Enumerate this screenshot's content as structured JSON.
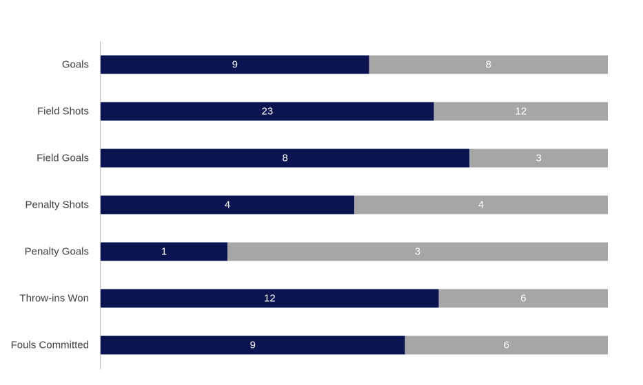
{
  "chart_data": {
    "type": "bar",
    "orientation": "horizontal",
    "stacking": "percent",
    "categories": [
      "Goals",
      "Field Shots",
      "Field Goals",
      "Penalty Shots",
      "Penalty Goals",
      "Throw-ins Won",
      "Fouls Committed"
    ],
    "series": [
      {
        "values": [
          9,
          23,
          8,
          4,
          1,
          12,
          9
        ],
        "color": "#0b1450"
      },
      {
        "values": [
          8,
          12,
          3,
          4,
          3,
          6,
          6
        ],
        "color": "#a6a6a6"
      }
    ],
    "data_labels": true,
    "legend": "none",
    "grid": false
  }
}
